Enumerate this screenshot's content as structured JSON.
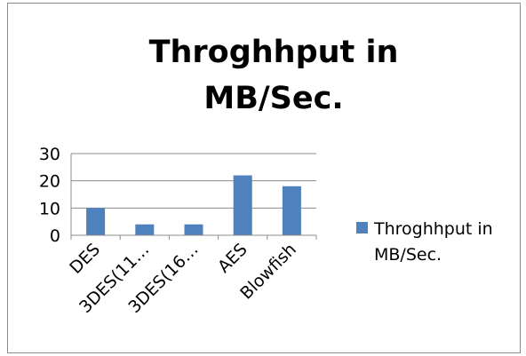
{
  "chart_data": {
    "type": "bar",
    "title_lines": [
      "Throghhput in",
      "MB/Sec."
    ],
    "categories": [
      "DES",
      "3DES(11…",
      "3DES(16…",
      "AES",
      "Blowfish"
    ],
    "series": [
      {
        "name": "Throghhput in MB/Sec.",
        "values": [
          10,
          4,
          4,
          22,
          18
        ]
      }
    ],
    "legend_lines": [
      "Throghhput in",
      "MB/Sec."
    ],
    "y_ticks": [
      "0",
      "10",
      "20",
      "30"
    ],
    "ylim": [
      0,
      30
    ],
    "grid": true,
    "legend_position": "right",
    "bar_color": "#4f81bd"
  }
}
